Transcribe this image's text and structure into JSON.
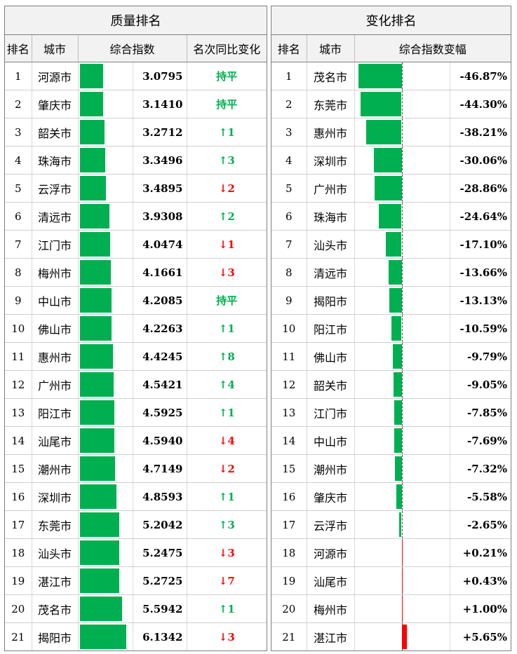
{
  "left": {
    "title": "质量排名",
    "headers": [
      "排名",
      "城市",
      "综合指数",
      "名次同比变化"
    ],
    "rows": [
      {
        "rank": "1",
        "city": "河源市",
        "index": "3.0795",
        "change": "持平",
        "dir": "flat",
        "value": 3.0795
      },
      {
        "rank": "2",
        "city": "肇庆市",
        "index": "3.1410",
        "change": "持平",
        "dir": "flat",
        "value": 3.141
      },
      {
        "rank": "3",
        "city": "韶关市",
        "index": "3.2712",
        "change": "↑1",
        "dir": "up",
        "value": 3.2712
      },
      {
        "rank": "4",
        "city": "珠海市",
        "index": "3.3496",
        "change": "↑3",
        "dir": "up",
        "value": 3.3496
      },
      {
        "rank": "5",
        "city": "云浮市",
        "index": "3.4895",
        "change": "↓2",
        "dir": "down",
        "value": 3.4895
      },
      {
        "rank": "6",
        "city": "清远市",
        "index": "3.9308",
        "change": "↑2",
        "dir": "up",
        "value": 3.9308
      },
      {
        "rank": "7",
        "city": "江门市",
        "index": "4.0474",
        "change": "↓1",
        "dir": "down",
        "value": 4.0474
      },
      {
        "rank": "8",
        "city": "梅州市",
        "index": "4.1661",
        "change": "↓3",
        "dir": "down",
        "value": 4.1661
      },
      {
        "rank": "9",
        "city": "中山市",
        "index": "4.2085",
        "change": "持平",
        "dir": "flat",
        "value": 4.2085
      },
      {
        "rank": "10",
        "city": "佛山市",
        "index": "4.2263",
        "change": "↑1",
        "dir": "up",
        "value": 4.2263
      },
      {
        "rank": "11",
        "city": "惠州市",
        "index": "4.4245",
        "change": "↑8",
        "dir": "up",
        "value": 4.4245
      },
      {
        "rank": "12",
        "city": "广州市",
        "index": "4.5421",
        "change": "↑4",
        "dir": "up",
        "value": 4.5421
      },
      {
        "rank": "13",
        "city": "阳江市",
        "index": "4.5925",
        "change": "↑1",
        "dir": "up",
        "value": 4.5925
      },
      {
        "rank": "14",
        "city": "汕尾市",
        "index": "4.5940",
        "change": "↓4",
        "dir": "down",
        "value": 4.594
      },
      {
        "rank": "15",
        "city": "潮州市",
        "index": "4.7149",
        "change": "↓2",
        "dir": "down",
        "value": 4.7149
      },
      {
        "rank": "16",
        "city": "深圳市",
        "index": "4.8593",
        "change": "↑1",
        "dir": "up",
        "value": 4.8593
      },
      {
        "rank": "17",
        "city": "东莞市",
        "index": "5.2042",
        "change": "↑3",
        "dir": "up",
        "value": 5.2042
      },
      {
        "rank": "18",
        "city": "汕头市",
        "index": "5.2475",
        "change": "↓3",
        "dir": "down",
        "value": 5.2475
      },
      {
        "rank": "19",
        "city": "湛江市",
        "index": "5.2725",
        "change": "↓7",
        "dir": "down",
        "value": 5.2725
      },
      {
        "rank": "20",
        "city": "茂名市",
        "index": "5.5942",
        "change": "↑1",
        "dir": "up",
        "value": 5.5942
      },
      {
        "rank": "21",
        "city": "揭阳市",
        "index": "6.1342",
        "change": "↓3",
        "dir": "down",
        "value": 6.1342
      }
    ]
  },
  "right": {
    "title": "变化排名",
    "headers": [
      "排名",
      "城市",
      "综合指数变幅"
    ],
    "rows": [
      {
        "rank": "1",
        "city": "茂名市",
        "pct": "-46.87%",
        "value": -46.87
      },
      {
        "rank": "2",
        "city": "东莞市",
        "pct": "-44.30%",
        "value": -44.3
      },
      {
        "rank": "3",
        "city": "惠州市",
        "pct": "-38.21%",
        "value": -38.21
      },
      {
        "rank": "4",
        "city": "深圳市",
        "pct": "-30.06%",
        "value": -30.06
      },
      {
        "rank": "5",
        "city": "广州市",
        "pct": "-28.86%",
        "value": -28.86
      },
      {
        "rank": "6",
        "city": "珠海市",
        "pct": "-24.64%",
        "value": -24.64
      },
      {
        "rank": "7",
        "city": "汕头市",
        "pct": "-17.10%",
        "value": -17.1
      },
      {
        "rank": "8",
        "city": "清远市",
        "pct": "-13.66%",
        "value": -13.66
      },
      {
        "rank": "9",
        "city": "揭阳市",
        "pct": "-13.13%",
        "value": -13.13
      },
      {
        "rank": "10",
        "city": "阳江市",
        "pct": "-10.59%",
        "value": -10.59
      },
      {
        "rank": "11",
        "city": "佛山市",
        "pct": "-9.79%",
        "value": -9.79
      },
      {
        "rank": "12",
        "city": "韶关市",
        "pct": "-9.05%",
        "value": -9.05
      },
      {
        "rank": "13",
        "city": "江门市",
        "pct": "-7.85%",
        "value": -7.85
      },
      {
        "rank": "14",
        "city": "中山市",
        "pct": "-7.69%",
        "value": -7.69
      },
      {
        "rank": "15",
        "city": "潮州市",
        "pct": "-7.32%",
        "value": -7.32
      },
      {
        "rank": "16",
        "city": "肇庆市",
        "pct": "-5.58%",
        "value": -5.58
      },
      {
        "rank": "17",
        "city": "云浮市",
        "pct": "-2.65%",
        "value": -2.65
      },
      {
        "rank": "18",
        "city": "河源市",
        "pct": "+0.21%",
        "value": 0.21
      },
      {
        "rank": "19",
        "city": "汕尾市",
        "pct": "+0.43%",
        "value": 0.43
      },
      {
        "rank": "20",
        "city": "梅州市",
        "pct": "+1.00%",
        "value": 1.0
      },
      {
        "rank": "21",
        "city": "湛江市",
        "pct": "+5.65%",
        "value": 5.65
      }
    ]
  },
  "colors": {
    "positive_bar": "#00b050",
    "negative_change": "#ff0000",
    "up_arrow": "#00b050",
    "down_arrow": "#ff0000"
  }
}
